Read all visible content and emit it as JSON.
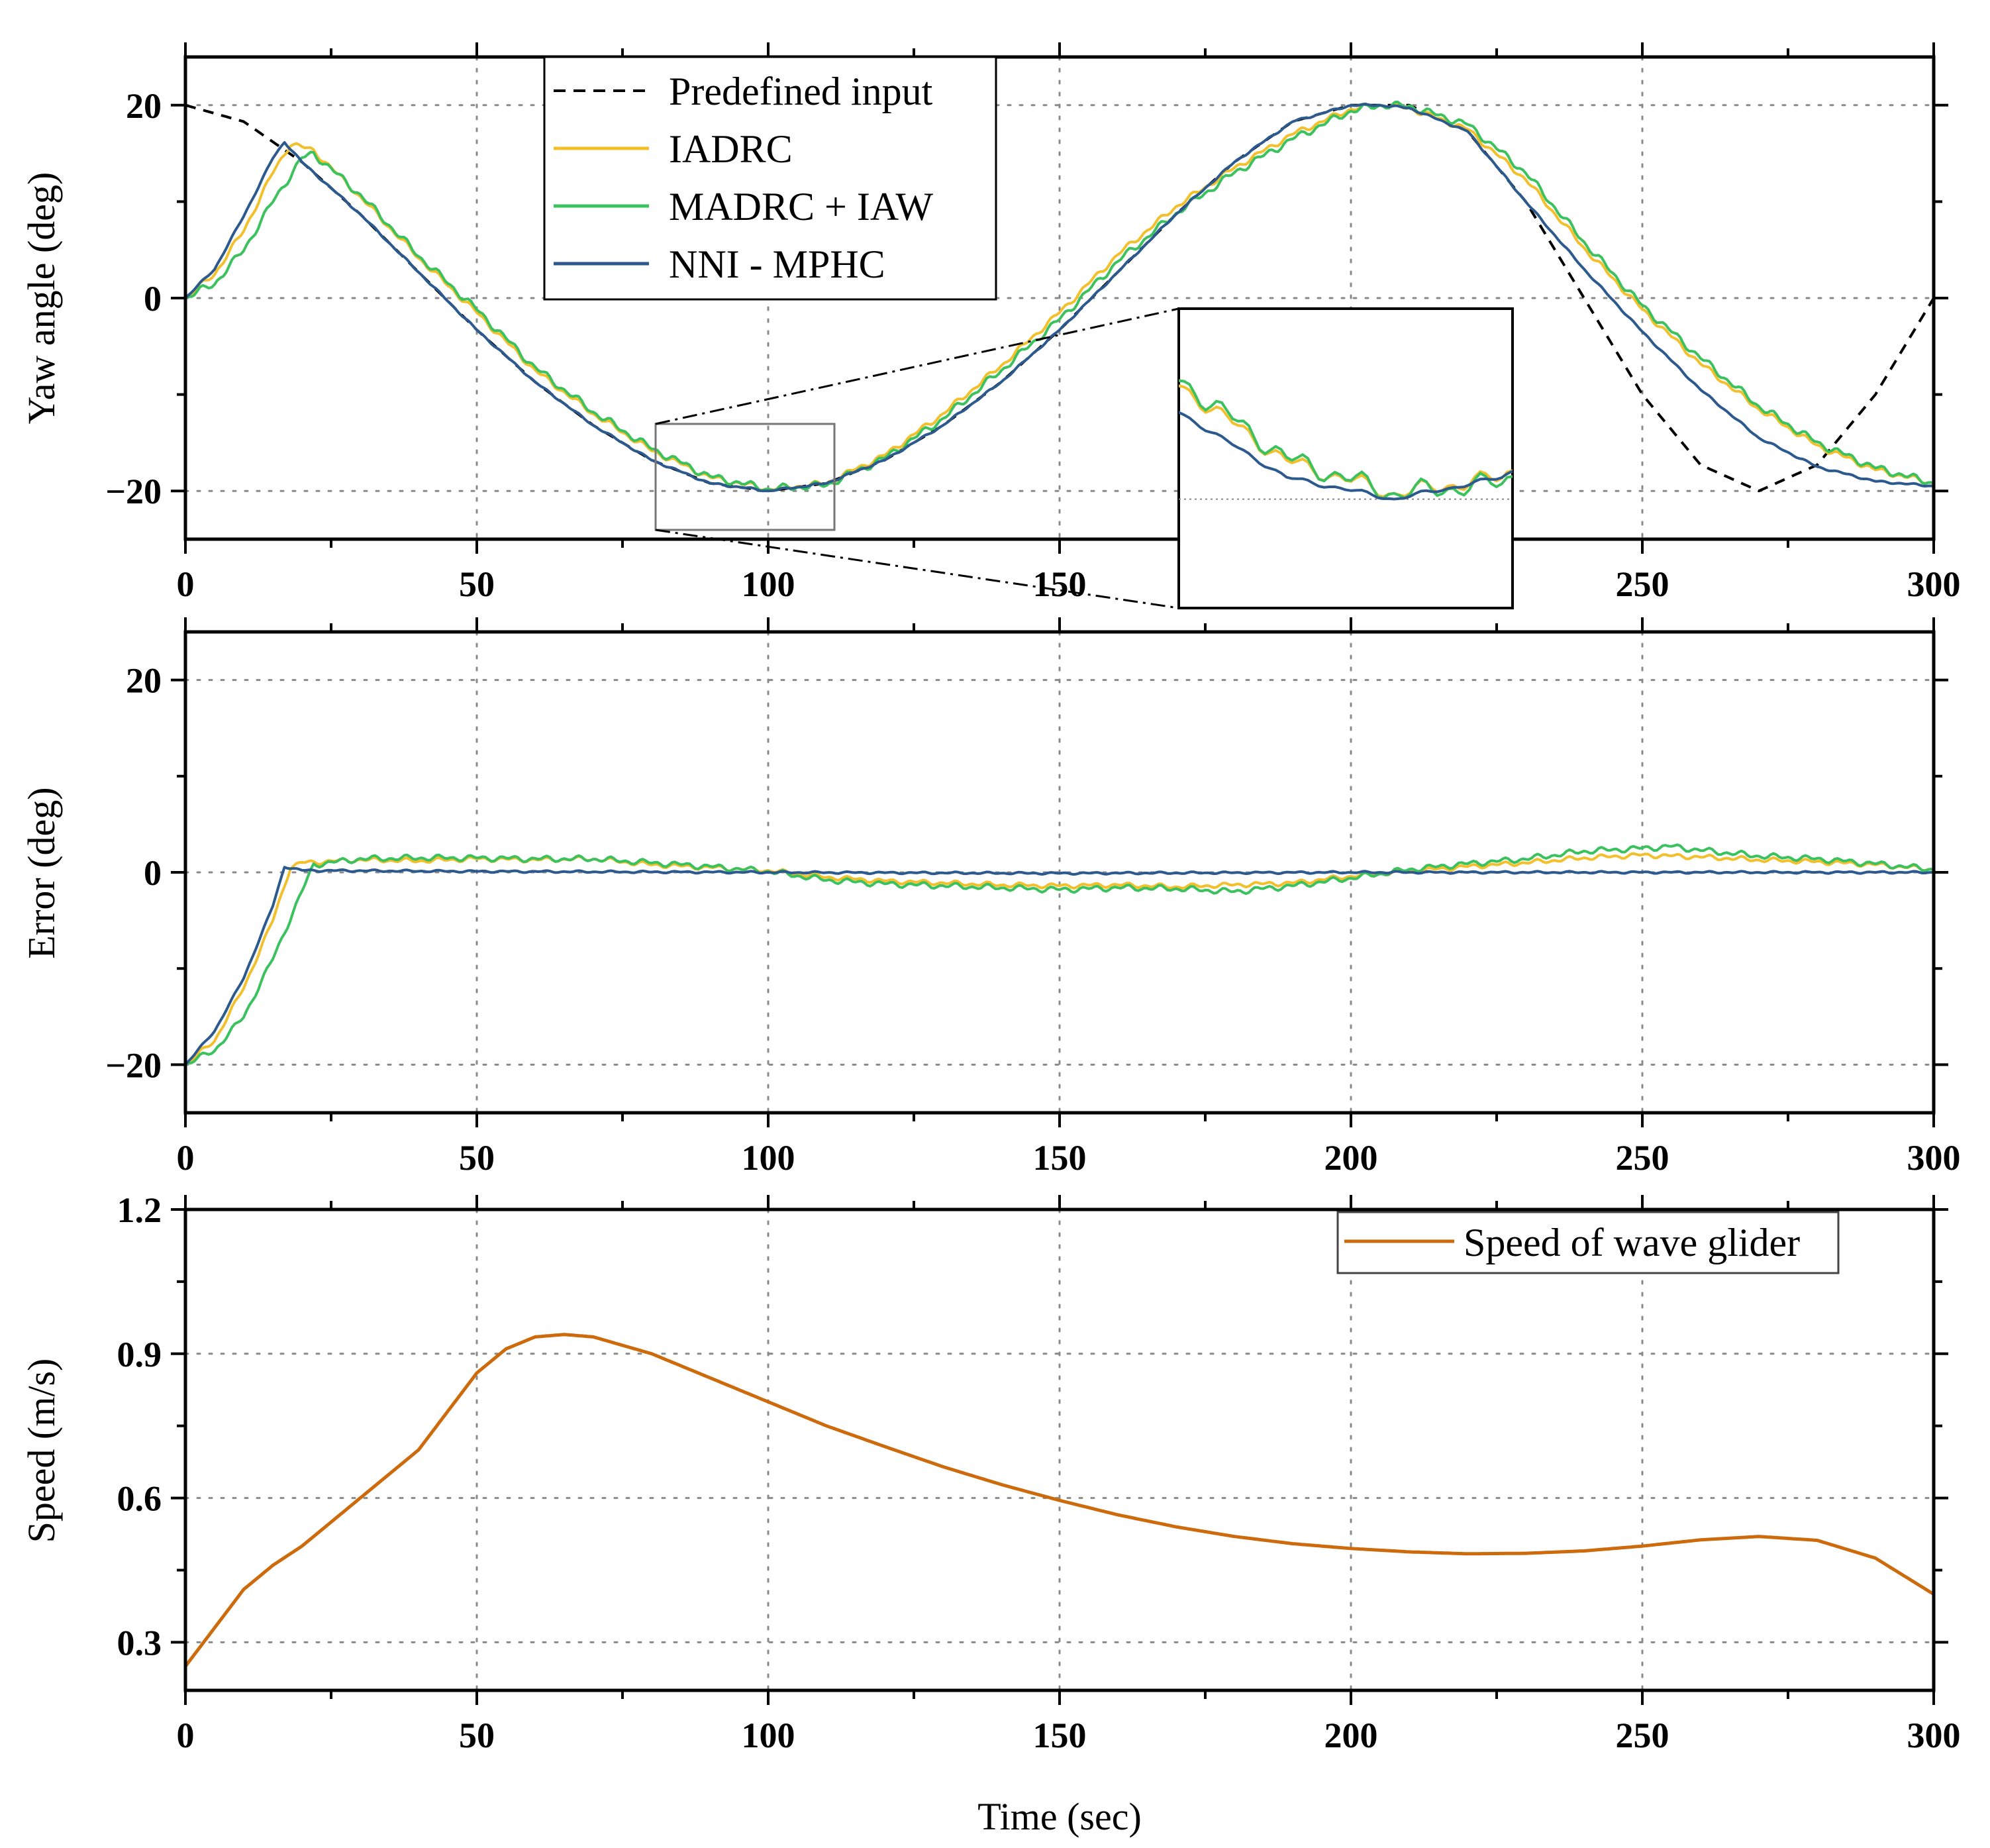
{
  "chart_data": [
    {
      "type": "line",
      "panel": "yaw",
      "ylabel": "Yaw angle (deg)",
      "xlim": [
        0,
        300
      ],
      "ylim": [
        -25,
        25
      ],
      "xticks": [
        0,
        50,
        100,
        150,
        200,
        250,
        300
      ],
      "xtick_labels": [
        "0",
        "50",
        "100",
        "150",
        "200",
        "250",
        "300"
      ],
      "yticks": [
        -20,
        0,
        20
      ],
      "ytick_labels": [
        "−20",
        "0",
        "20"
      ],
      "legend_position": "top-left",
      "series": [
        {
          "name": "Predefined input",
          "color": "#000000",
          "style": "dashed",
          "x": [
            0,
            10,
            20,
            30,
            40,
            50,
            60,
            70,
            80,
            90,
            100,
            110,
            120,
            130,
            140,
            150,
            160,
            170,
            180,
            190,
            200,
            210,
            220,
            230,
            240,
            250,
            260,
            270,
            280,
            290,
            300
          ],
          "y": [
            20,
            18.3,
            14.1,
            8.7,
            2.7,
            -3.3,
            -8.7,
            -13.2,
            -16.8,
            -19.2,
            -20,
            -19.2,
            -16.8,
            -13.2,
            -8.7,
            -3.3,
            2.7,
            8.7,
            14.1,
            18.3,
            20,
            20.0,
            17.3,
            10.0,
            0,
            -10.0,
            -17.3,
            -20,
            -17.3,
            -10.0,
            0
          ]
        },
        {
          "name": "IADRC",
          "color": "#f2c02c",
          "style": "solid",
          "x": [
            0,
            5,
            10,
            15,
            18,
            22,
            30,
            40,
            50,
            60,
            70,
            80,
            90,
            100,
            110,
            120,
            130,
            140,
            150,
            160,
            170,
            180,
            190,
            200,
            205,
            210,
            220,
            230,
            240,
            250,
            260,
            270,
            280,
            290,
            300
          ],
          "y": [
            0,
            2.5,
            7,
            13,
            16,
            15.3,
            10.5,
            4.2,
            -1.5,
            -7.5,
            -12,
            -15.8,
            -18.6,
            -19.8,
            -19.2,
            -16.3,
            -12,
            -7,
            -1.5,
            4.5,
            9.5,
            13.5,
            17.0,
            19.6,
            20,
            19.7,
            17.5,
            12.3,
            5.2,
            -1.2,
            -6.8,
            -11.5,
            -15.3,
            -17.8,
            -19.2
          ]
        },
        {
          "name": "MADRC + IAW",
          "color": "#3cc15f",
          "style": "solid",
          "x": [
            0,
            5,
            10,
            15,
            20,
            22,
            30,
            40,
            50,
            60,
            70,
            80,
            90,
            100,
            110,
            120,
            130,
            140,
            150,
            160,
            170,
            180,
            190,
            200,
            205,
            210,
            220,
            230,
            240,
            250,
            260,
            270,
            280,
            290,
            300
          ],
          "y": [
            0,
            1.5,
            5,
            10,
            14.5,
            15,
            10.7,
            4.4,
            -1.2,
            -7.2,
            -11.8,
            -15.6,
            -18.5,
            -19.8,
            -19.4,
            -16.6,
            -12.5,
            -7.5,
            -2.2,
            3.8,
            8.8,
            13.0,
            16.5,
            19.4,
            20,
            19.9,
            18.0,
            13.0,
            5.8,
            -0.8,
            -6.2,
            -11.2,
            -15.0,
            -17.6,
            -19.2
          ]
        },
        {
          "name": "NNI - MPHC",
          "color": "#2c5a8e",
          "style": "solid",
          "x": [
            0,
            5,
            10,
            15,
            17,
            20,
            30,
            40,
            50,
            60,
            70,
            80,
            90,
            100,
            110,
            120,
            130,
            140,
            150,
            160,
            170,
            180,
            190,
            200,
            205,
            210,
            220,
            230,
            240,
            250,
            260,
            270,
            280,
            290,
            300
          ],
          "y": [
            0,
            3,
            8.5,
            14.5,
            16.2,
            14.1,
            8.7,
            2.7,
            -3.3,
            -8.7,
            -13.2,
            -16.8,
            -19.2,
            -20,
            -19.2,
            -16.8,
            -13.2,
            -8.7,
            -3.3,
            2.7,
            8.7,
            14.1,
            18.3,
            20,
            20,
            19.7,
            17.3,
            10.0,
            3.0,
            -3.5,
            -9.5,
            -14.5,
            -17.5,
            -19.0,
            -19.5
          ]
        }
      ]
    },
    {
      "type": "line",
      "panel": "error",
      "ylabel": "Error (deg)",
      "xlim": [
        0,
        300
      ],
      "ylim": [
        -25,
        25
      ],
      "xticks": [
        0,
        50,
        100,
        150,
        200,
        250,
        300
      ],
      "xtick_labels": [
        "0",
        "50",
        "100",
        "150",
        "200",
        "250",
        "300"
      ],
      "yticks": [
        -20,
        0,
        20
      ],
      "ytick_labels": [
        "−20",
        "0",
        "20"
      ],
      "series": [
        {
          "name": "IADRC",
          "color": "#f2c02c",
          "x": [
            0,
            5,
            10,
            15,
            18,
            20,
            30,
            40,
            50,
            60,
            70,
            80,
            90,
            100,
            110,
            120,
            130,
            140,
            150,
            160,
            170,
            180,
            190,
            200,
            210,
            220,
            230,
            240,
            250,
            260,
            270,
            280,
            290,
            300
          ],
          "y": [
            -20,
            -17.5,
            -12,
            -5,
            0.5,
            1.0,
            1.3,
            1.2,
            1.4,
            1.3,
            1.4,
            0.8,
            0.5,
            0.2,
            -0.5,
            -0.9,
            -1.1,
            -1.3,
            -1.4,
            -1.3,
            -1.5,
            -1.3,
            -1.1,
            -0.4,
            0.1,
            0.6,
            1.0,
            1.5,
            1.8,
            1.6,
            1.3,
            1.1,
            0.8,
            0.3
          ]
        },
        {
          "name": "MADRC + IAW",
          "color": "#3cc15f",
          "x": [
            0,
            5,
            10,
            15,
            20,
            22,
            30,
            40,
            50,
            60,
            70,
            80,
            90,
            100,
            110,
            120,
            130,
            140,
            150,
            160,
            170,
            180,
            190,
            200,
            210,
            220,
            230,
            240,
            250,
            255,
            260,
            270,
            280,
            290,
            300
          ],
          "y": [
            -20,
            -18.5,
            -15,
            -9,
            -2,
            0.8,
            1.4,
            1.5,
            1.5,
            1.4,
            1.4,
            1.0,
            0.6,
            0.1,
            -0.8,
            -1.2,
            -1.4,
            -1.6,
            -1.8,
            -1.6,
            -1.7,
            -2.0,
            -1.4,
            -0.6,
            0.3,
            0.9,
            1.4,
            2.2,
            2.5,
            2.7,
            2.3,
            1.7,
            1.4,
            0.9,
            0.3
          ]
        },
        {
          "name": "NNI - MPHC",
          "color": "#2c5a8e",
          "x": [
            0,
            5,
            10,
            15,
            17,
            20,
            50,
            100,
            150,
            200,
            250,
            300
          ],
          "y": [
            -20,
            -16.5,
            -11,
            -3.5,
            0.6,
            0.2,
            0.1,
            0,
            -0.1,
            0,
            0,
            0
          ]
        }
      ]
    },
    {
      "type": "line",
      "panel": "speed",
      "xlabel": "Time (sec)",
      "ylabel": "Speed (m/s)",
      "xlim": [
        0,
        300
      ],
      "ylim": [
        0.2,
        1.2
      ],
      "xticks": [
        0,
        50,
        100,
        150,
        200,
        250,
        300
      ],
      "xtick_labels": [
        "0",
        "50",
        "100",
        "150",
        "200",
        "250",
        "300"
      ],
      "yticks": [
        0.3,
        0.6,
        0.9,
        1.2
      ],
      "ytick_labels": [
        "0.3",
        "0.6",
        "0.9",
        "1.2"
      ],
      "legend_position": "top-right",
      "series": [
        {
          "name": "Speed of wave glider",
          "color": "#cc6a0c",
          "x": [
            0,
            5,
            10,
            15,
            20,
            30,
            40,
            45,
            50,
            55,
            60,
            65,
            70,
            80,
            90,
            100,
            110,
            120,
            130,
            140,
            150,
            160,
            170,
            180,
            190,
            200,
            210,
            220,
            230,
            240,
            250,
            260,
            270,
            280,
            290,
            300
          ],
          "y": [
            0.25,
            0.33,
            0.41,
            0.46,
            0.5,
            0.6,
            0.7,
            0.78,
            0.86,
            0.91,
            0.935,
            0.94,
            0.935,
            0.9,
            0.85,
            0.8,
            0.75,
            0.707,
            0.665,
            0.628,
            0.595,
            0.565,
            0.54,
            0.52,
            0.505,
            0.495,
            0.488,
            0.484,
            0.485,
            0.49,
            0.5,
            0.513,
            0.52,
            0.512,
            0.475,
            0.4
          ]
        }
      ]
    }
  ],
  "zoom_inset": {
    "source_x_range": [
      80,
      111
    ],
    "source_y_range": [
      -24,
      -13
    ]
  }
}
